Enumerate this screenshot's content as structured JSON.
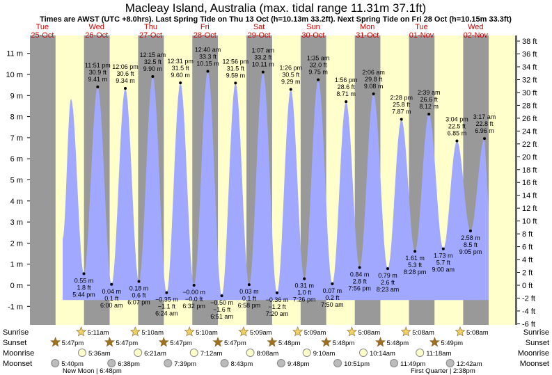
{
  "header": {
    "title": "Macleay Island, Australia (max. tidal range 11.31m 37.1ft)",
    "subtitle": "Times are AWST (UTC +8.0hrs). Last Spring Tide on Thu 13 Oct (h=10.13m 33.2ft). Next Spring Tide on Fri 28 Oct (h=10.15m 33.3ft)"
  },
  "colors": {
    "day_bg": "#ffffcc",
    "night_bg": "#999999",
    "water": "#a0a8ff",
    "day_text": "#cc0000",
    "sun": "#f0d060",
    "sunset": "#a07020",
    "moonrise": "#ffffcc",
    "moonset": "#bbbbbb"
  },
  "chart_data": {
    "type": "area",
    "title": "Macleay Island, Australia (max. tidal range 11.31m 37.1ft)",
    "y_left_unit": "m",
    "y_right_unit": "ft",
    "ylim_m": [
      -1.6,
      11.6
    ],
    "y_left_ticks": [
      "-1 m",
      "0 m",
      "1 m",
      "2 m",
      "3 m",
      "4 m",
      "5 m",
      "6 m",
      "7 m",
      "8 m",
      "9 m",
      "10 m",
      "11 m"
    ],
    "y_right_ticks": [
      "-6 ft",
      "-4 ft",
      "-2 ft",
      "0 ft",
      "2 ft",
      "4 ft",
      "6 ft",
      "8 ft",
      "10 ft",
      "12 ft",
      "14 ft",
      "16 ft",
      "18 ft",
      "20 ft",
      "22 ft",
      "24 ft",
      "26 ft",
      "28 ft",
      "30 ft",
      "32 ft",
      "34 ft",
      "36 ft",
      "38 ft"
    ],
    "days": [
      {
        "name": "Tue",
        "date": "25-Oct"
      },
      {
        "name": "Wed",
        "date": "26-Oct"
      },
      {
        "name": "Thu",
        "date": "27-Oct"
      },
      {
        "name": "Fri",
        "date": "28-Oct"
      },
      {
        "name": "Sat",
        "date": "29-Oct"
      },
      {
        "name": "Sun",
        "date": "30-Oct"
      },
      {
        "name": "Mon",
        "date": "31-Oct"
      },
      {
        "name": "Tue",
        "date": "01-Nov"
      },
      {
        "name": "Wed",
        "date": "02-Nov"
      }
    ],
    "tides": [
      {
        "kind": "low",
        "h": 0.55,
        "time": "5:44 pm",
        "m": "0.55 m",
        "ft": "1.8 ft"
      },
      {
        "kind": "high",
        "h": 9.41,
        "time": "11:51 pm",
        "m": "9.41 m",
        "ft": "30.9 ft"
      },
      {
        "kind": "low",
        "h": 0.04,
        "time": "6:00 am",
        "m": "0.04 m",
        "ft": "0.1 ft"
      },
      {
        "kind": "high",
        "h": 9.34,
        "time": "12:06 pm",
        "m": "9.34 m",
        "ft": "30.6 ft"
      },
      {
        "kind": "low",
        "h": 0.18,
        "time": "6:07 pm",
        "m": "0.18 m",
        "ft": "0.6 ft"
      },
      {
        "kind": "high",
        "h": 9.9,
        "time": "12:15 am",
        "m": "9.90 m",
        "ft": "32.5 ft"
      },
      {
        "kind": "low",
        "h": -0.35,
        "time": "6:24 am",
        "m": "−0.35 m",
        "ft": "−1.1 ft"
      },
      {
        "kind": "high",
        "h": 9.6,
        "time": "12:31 pm",
        "m": "9.60 m",
        "ft": "31.5 ft"
      },
      {
        "kind": "low",
        "h": 0.0,
        "time": "6:32 pm",
        "m": "−0.00 m",
        "ft": "−0.0 ft"
      },
      {
        "kind": "high",
        "h": 10.15,
        "time": "12:40 am",
        "m": "10.15 m",
        "ft": "33.3 ft"
      },
      {
        "kind": "low",
        "h": -0.5,
        "time": "6:51 am",
        "m": "−0.50 m",
        "ft": "−1.6 ft"
      },
      {
        "kind": "high",
        "h": 9.59,
        "time": "12:56 pm",
        "m": "9.59 m",
        "ft": "31.5 ft"
      },
      {
        "kind": "low",
        "h": 0.03,
        "time": "6:58 pm",
        "m": "0.03 m",
        "ft": "0.1 ft"
      },
      {
        "kind": "high",
        "h": 10.11,
        "time": "1:07 am",
        "m": "10.11 m",
        "ft": "33.2 ft"
      },
      {
        "kind": "low",
        "h": -0.36,
        "time": "7:20 am",
        "m": "−0.36 m",
        "ft": "−1.2 ft"
      },
      {
        "kind": "high",
        "h": 9.29,
        "time": "1:26 pm",
        "m": "9.29 m",
        "ft": "30.5 ft"
      },
      {
        "kind": "low",
        "h": 0.31,
        "time": "7:26 pm",
        "m": "0.31 m",
        "ft": "1.0 ft"
      },
      {
        "kind": "high",
        "h": 9.75,
        "time": "1:35 am",
        "m": "9.75 m",
        "ft": "32.0 ft"
      },
      {
        "kind": "low",
        "h": 0.07,
        "time": "7:50 am",
        "m": "0.07 m",
        "ft": "0.2 ft"
      },
      {
        "kind": "high",
        "h": 8.71,
        "time": "1:56 pm",
        "m": "8.71 m",
        "ft": "28.6 ft"
      },
      {
        "kind": "low",
        "h": 0.84,
        "time": "7:56 pm",
        "m": "0.84 m",
        "ft": "2.8 ft"
      },
      {
        "kind": "high",
        "h": 9.08,
        "time": "2:06 am",
        "m": "9.08 m",
        "ft": "29.8 ft"
      },
      {
        "kind": "low",
        "h": 0.79,
        "time": "8:23 am",
        "m": "0.79 m",
        "ft": "2.6 ft"
      },
      {
        "kind": "high",
        "h": 7.87,
        "time": "2:28 pm",
        "m": "7.87 m",
        "ft": "25.8 ft"
      },
      {
        "kind": "low",
        "h": 1.61,
        "time": "8:28 pm",
        "m": "1.61 m",
        "ft": "5.3 ft"
      },
      {
        "kind": "high",
        "h": 8.12,
        "time": "2:39 am",
        "m": "8.12 m",
        "ft": "26.6 ft"
      },
      {
        "kind": "low",
        "h": 1.73,
        "time": "9:00 am",
        "m": "1.73 m",
        "ft": "5.7 ft"
      },
      {
        "kind": "high",
        "h": 6.85,
        "time": "3:04 pm",
        "m": "6.85 m",
        "ft": "22.5 ft"
      },
      {
        "kind": "low",
        "h": 2.58,
        "time": "9:05 pm",
        "m": "2.58 m",
        "ft": "8.5 ft"
      },
      {
        "kind": "high",
        "h": 6.96,
        "time": "3:17 am",
        "m": "6.96 m",
        "ft": "22.8 ft"
      }
    ],
    "rows": {
      "sunrise": {
        "label": "Sunrise",
        "times": [
          "5:11am",
          "5:10am",
          "5:10am",
          "5:09am",
          "5:09am",
          "5:08am",
          "5:08am",
          "5:08am"
        ]
      },
      "sunset": {
        "label": "Sunset",
        "times": [
          "5:47pm",
          "5:47pm",
          "5:47pm",
          "5:47pm",
          "5:48pm",
          "5:48pm",
          "5:48pm",
          "5:49pm"
        ]
      },
      "moonrise": {
        "label": "Moonrise",
        "times": [
          "5:36am",
          "6:21am",
          "7:12am",
          "8:08am",
          "9:10am",
          "10:14am",
          "11:18am"
        ]
      },
      "moonset": {
        "label": "Moonset",
        "times": [
          "5:40pm",
          "6:38pm",
          "7:39pm",
          "8:43pm",
          "9:48pm",
          "10:51pm",
          "11:49pm",
          "12:42am"
        ]
      }
    },
    "moon_phases": [
      {
        "text": "New Moon | 6:48pm"
      },
      {
        "text": "First Quarter | 2:38pm"
      }
    ]
  }
}
